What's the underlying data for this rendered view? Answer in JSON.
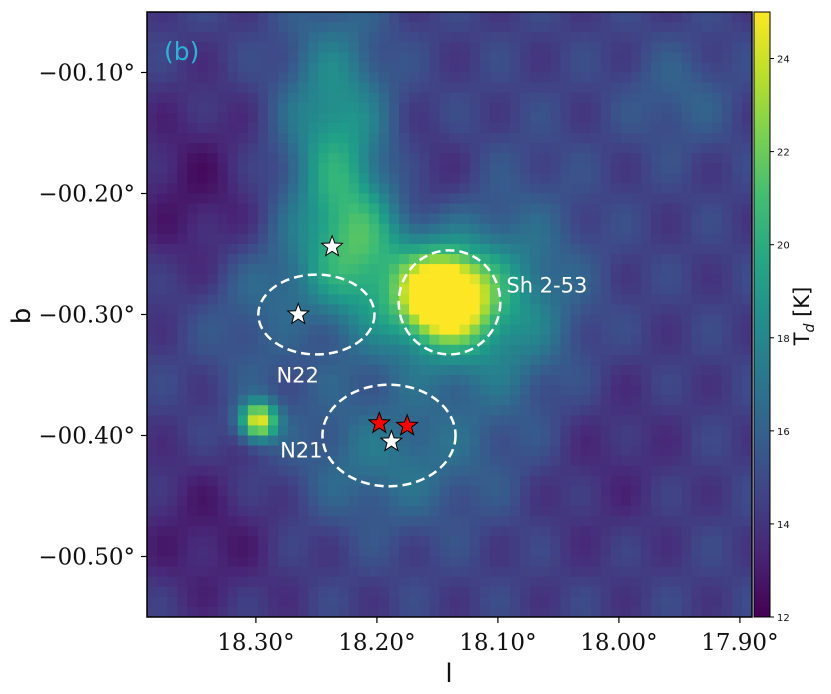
{
  "chart_data": {
    "type": "heatmap",
    "panel_label": "(b)",
    "xlabel": "l",
    "ylabel": "b",
    "colorbar_label": "T$_d$ [K]",
    "colormap": "viridis",
    "xlim": [
      18.39,
      17.89
    ],
    "ylim": [
      -0.55,
      -0.05
    ],
    "clim": [
      12,
      25
    ],
    "x_ticks": [
      {
        "value": 18.3,
        "label": "18.30°"
      },
      {
        "value": 18.2,
        "label": "18.20°"
      },
      {
        "value": 18.1,
        "label": "18.10°"
      },
      {
        "value": 18.0,
        "label": "18.00°"
      },
      {
        "value": 17.9,
        "label": "17.90°"
      }
    ],
    "y_ticks": [
      {
        "value": -0.1,
        "label": "−00.10°"
      },
      {
        "value": -0.2,
        "label": "−00.20°"
      },
      {
        "value": -0.3,
        "label": "−00.30°"
      },
      {
        "value": -0.4,
        "label": "−00.40°"
      },
      {
        "value": -0.5,
        "label": "−00.50°"
      }
    ],
    "colorbar_ticks": [
      {
        "value": 12,
        "label": "12"
      },
      {
        "value": 14,
        "label": "14"
      },
      {
        "value": 16,
        "label": "16"
      },
      {
        "value": 18,
        "label": "18"
      },
      {
        "value": 20,
        "label": "20"
      },
      {
        "value": 22,
        "label": "22"
      },
      {
        "value": 24,
        "label": "24"
      }
    ],
    "background_temperature": 14.5,
    "features": [
      {
        "name": "sh253-core",
        "l": 18.145,
        "b": -0.285,
        "t": 25.5,
        "sigma_l": 0.022,
        "sigma_b": 0.022
      },
      {
        "name": "sh253-halo",
        "l": 18.14,
        "b": -0.29,
        "t": 20.0,
        "sigma_l": 0.045,
        "sigma_b": 0.04
      },
      {
        "name": "n21-west-source",
        "l": 18.298,
        "b": -0.388,
        "t": 24.5,
        "sigma_l": 0.011,
        "sigma_b": 0.011
      },
      {
        "name": "filament-north",
        "l": 18.235,
        "b": -0.15,
        "t": 19.0,
        "sigma_l": 0.03,
        "sigma_b": 0.07
      },
      {
        "name": "filament-center",
        "l": 18.215,
        "b": -0.24,
        "t": 19.0,
        "sigma_l": 0.03,
        "sigma_b": 0.045
      },
      {
        "name": "filament-arc",
        "l": 18.28,
        "b": -0.3,
        "t": 17.5,
        "sigma_l": 0.04,
        "sigma_b": 0.04
      },
      {
        "name": "ridge-south",
        "l": 18.19,
        "b": -0.42,
        "t": 17.0,
        "sigma_l": 0.06,
        "sigma_b": 0.04
      },
      {
        "name": "ridge-east",
        "l": 18.08,
        "b": -0.3,
        "t": 16.5,
        "sigma_l": 0.04,
        "sigma_b": 0.08
      },
      {
        "name": "n22-cavity",
        "l": 18.265,
        "b": -0.31,
        "t": 12.5,
        "sigma_l": 0.03,
        "sigma_b": 0.025
      },
      {
        "name": "cold-west",
        "l": 18.35,
        "b": -0.2,
        "t": 12.8,
        "sigma_l": 0.04,
        "sigma_b": 0.06
      },
      {
        "name": "cold-southwest",
        "l": 18.34,
        "b": -0.48,
        "t": 13.0,
        "sigma_l": 0.05,
        "sigma_b": 0.05
      },
      {
        "name": "cold-center-north",
        "l": 18.17,
        "b": -0.19,
        "t": 13.2,
        "sigma_l": 0.03,
        "sigma_b": 0.03
      },
      {
        "name": "warm-northeast",
        "l": 17.95,
        "b": -0.12,
        "t": 16.0,
        "sigma_l": 0.03,
        "sigma_b": 0.03
      },
      {
        "name": "cold-east",
        "l": 18.02,
        "b": -0.42,
        "t": 13.5,
        "sigma_l": 0.05,
        "sigma_b": 0.06
      }
    ],
    "regions": [
      {
        "name": "N22",
        "l": 18.25,
        "b": -0.3,
        "rl": 0.048,
        "rb": 0.033
      },
      {
        "name": "Sh 2-53",
        "l": 18.14,
        "b": -0.29,
        "rl": 0.042,
        "rb": 0.043
      },
      {
        "name": "N21",
        "l": 18.19,
        "b": -0.4,
        "rl": 0.055,
        "rb": 0.042
      }
    ],
    "region_labels": [
      {
        "text": "Sh 2-53",
        "l": 18.093,
        "b": -0.282
      },
      {
        "text": "N22",
        "l": 18.283,
        "b": -0.356
      },
      {
        "text": "N21",
        "l": 18.28,
        "b": -0.418
      }
    ],
    "stars": [
      {
        "l": 18.237,
        "b": -0.244,
        "color": "#ffffff"
      },
      {
        "l": 18.265,
        "b": -0.3,
        "color": "#ffffff"
      },
      {
        "l": 18.198,
        "b": -0.39,
        "color": "#ff0000"
      },
      {
        "l": 18.175,
        "b": -0.392,
        "color": "#ff0000"
      },
      {
        "l": 18.188,
        "b": -0.405,
        "color": "#ffffff"
      }
    ]
  }
}
